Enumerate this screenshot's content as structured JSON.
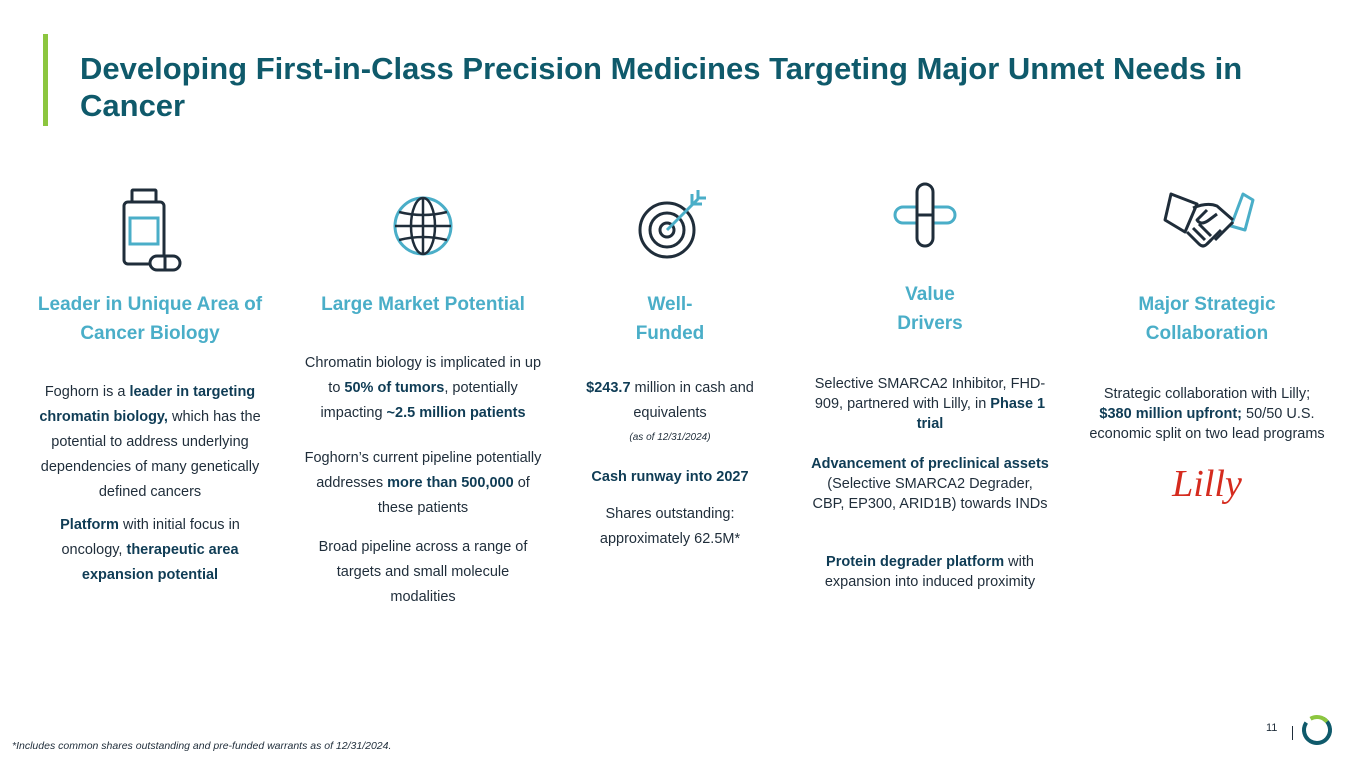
{
  "header": {
    "title": "Developing First-in-Class Precision Medicines Targeting Major Unmet Needs in Cancer"
  },
  "columns": [
    {
      "icon": "medicine-bottle-icon",
      "heading": "Leader in Unique Area of Cancer Biology",
      "p1_a": "Foghorn is a ",
      "p1_b": "leader in targeting chromatin biology,",
      "p1_c": " which has the potential to address underlying dependencies of many genetically defined cancers",
      "p2_a": "Platform",
      "p2_b": " with initial focus in oncology, ",
      "p2_c": "therapeutic area expansion potential"
    },
    {
      "icon": "globe-icon",
      "heading": "Large Market Potential",
      "p1_a": "Chromatin biology is implicated in up to ",
      "p1_b": "50% of tumors",
      "p1_c": ", potentially impacting ",
      "p1_d": "~2.5 million patients",
      "p2_a": "Foghorn’s current pipeline potentially addresses ",
      "p2_b": "more than 500,000",
      "p2_c": " of these patients",
      "p3": "Broad pipeline across a range of targets and small molecule modalities"
    },
    {
      "icon": "target-icon",
      "heading": "Well-Funded",
      "p1_a": "$243.7",
      "p1_b": " million in cash and equivalents",
      "p1_note": "(as of 12/31/2024)",
      "p2": "Cash runway into 2027",
      "p3": "Shares outstanding: approximately 62.5M*"
    },
    {
      "icon": "capsule-cross-icon",
      "heading": "Value Drivers",
      "p1_a": "Selective SMARCA2 Inhibitor, FHD-909, partnered with Lilly, in ",
      "p1_b": "Phase 1 trial",
      "p2_a": "Advancement of preclinical assets",
      "p2_b": " (Selective SMARCA2 Degrader, CBP, EP300, ARID1B) towards INDs",
      "p3_a": "Protein degrader platform",
      "p3_b": " with expansion into induced proximity"
    },
    {
      "icon": "handshake-icon",
      "heading": "Major Strategic Collaboration",
      "p1_a": "Strategic collaboration with Lilly; ",
      "p1_b": "$380 million upfront;",
      "p1_c": " 50/50 U.S. economic split on two lead programs",
      "logo_text": "Lilly"
    }
  ],
  "footer": {
    "footnote": "*Includes common shares outstanding and pre-funded warrants as of 12/31/2024.",
    "page_number": "11"
  },
  "colors": {
    "title": "#0f5a6b",
    "accent_bar": "#8cc63f",
    "heading": "#4aaec8",
    "icon_dark": "#1f2d3a",
    "icon_light": "#4aaec8",
    "lilly_red": "#d52b1e"
  }
}
